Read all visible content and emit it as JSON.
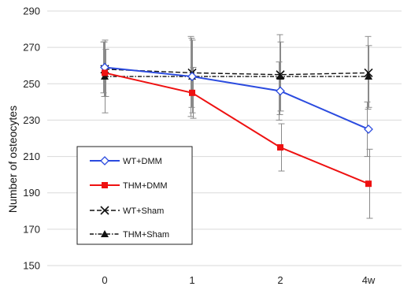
{
  "chart_data": {
    "type": "line",
    "categories": [
      "0",
      "1",
      "2",
      "4w"
    ],
    "ylabel": "Number of osteocytes",
    "xlabel": "",
    "ylim": [
      150,
      290
    ],
    "yticks": [
      150,
      170,
      190,
      210,
      230,
      250,
      270,
      290
    ],
    "grid": true,
    "legend_position": "lower-left",
    "series": [
      {
        "name": "WT+DMM",
        "color": "#2b4bdf",
        "marker": "diamond-open",
        "dash": "solid",
        "values": [
          259,
          254,
          246,
          225
        ],
        "errors": [
          14,
          22,
          16,
          15
        ]
      },
      {
        "name": "THM+DMM",
        "color": "#ee1111",
        "marker": "square",
        "dash": "solid",
        "values": [
          256,
          245,
          215,
          195
        ],
        "errors": [
          13,
          14,
          13,
          19
        ]
      },
      {
        "name": "WT+Sham",
        "color": "#111111",
        "marker": "x",
        "dash": "dashed",
        "values": [
          258,
          256,
          255,
          256
        ],
        "errors": [
          15,
          19,
          22,
          20
        ]
      },
      {
        "name": "THM+Sham",
        "color": "#111111",
        "marker": "triangle",
        "dash": "dashdot",
        "values": [
          254,
          254,
          254,
          254
        ],
        "errors": [
          20,
          20,
          19,
          17
        ]
      }
    ]
  }
}
